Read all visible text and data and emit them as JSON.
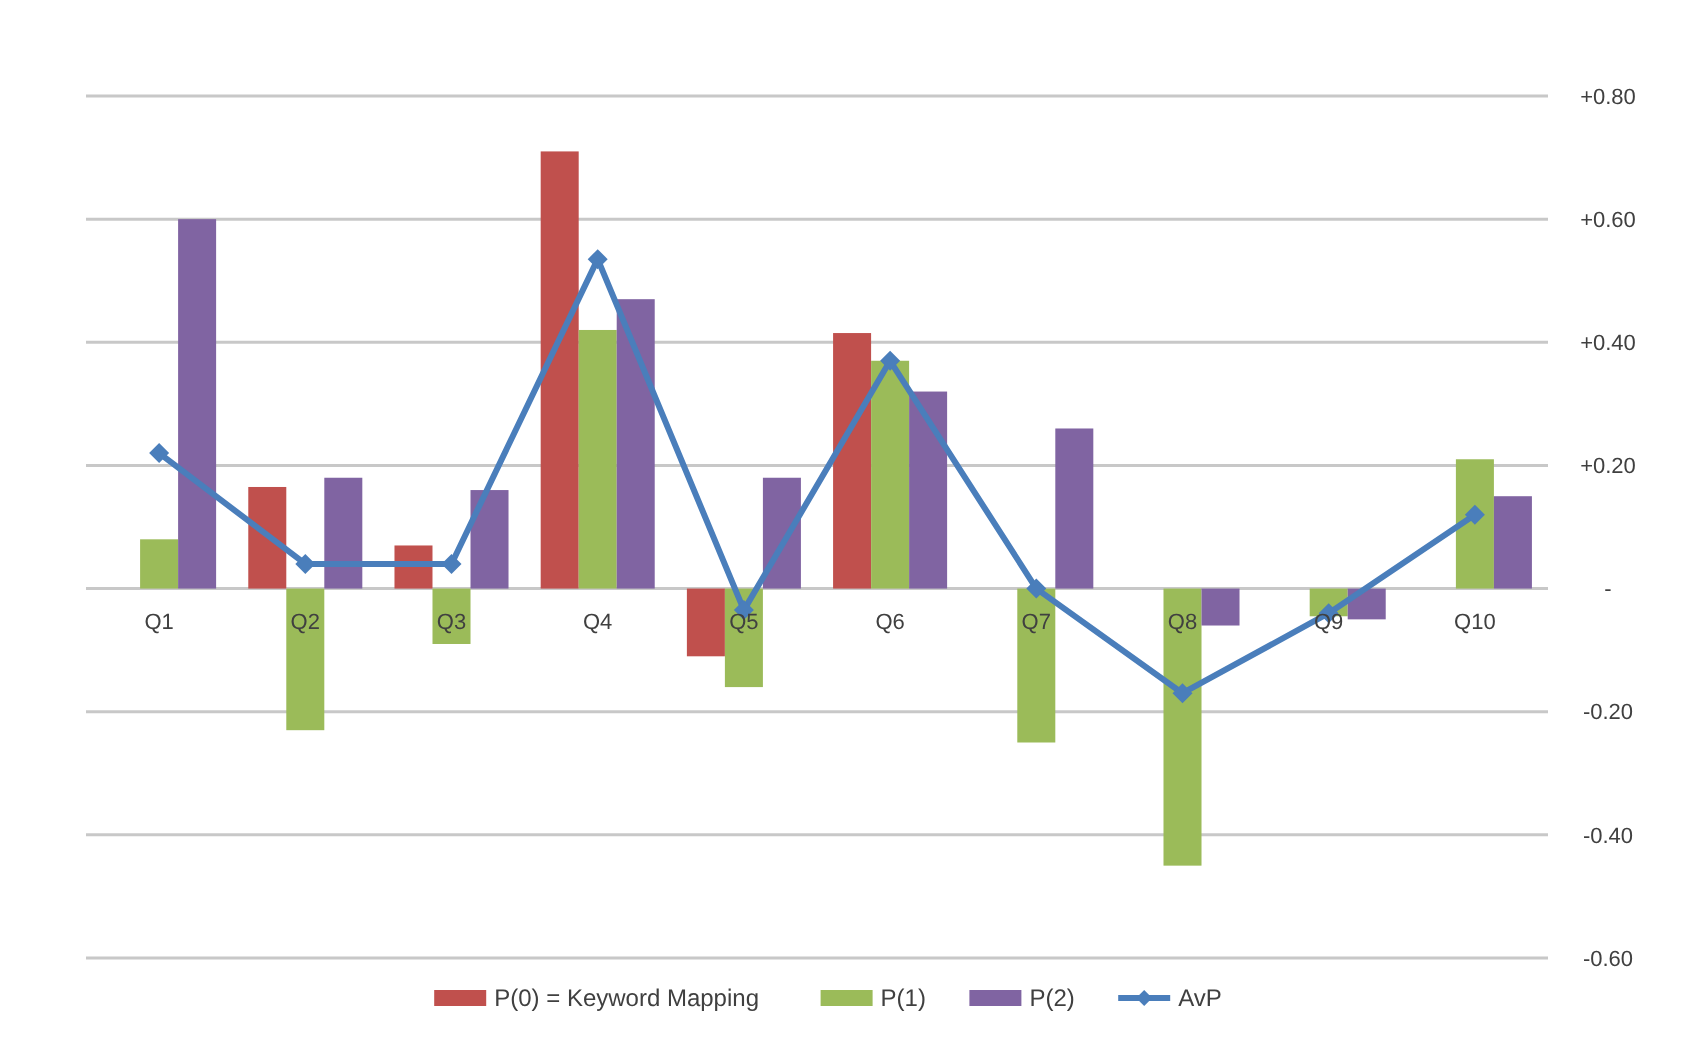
{
  "chart_data": {
    "type": "bar",
    "categories": [
      "Q1",
      "Q2",
      "Q3",
      "Q4",
      "Q5",
      "Q6",
      "Q7",
      "Q8",
      "Q9",
      "Q10"
    ],
    "series": [
      {
        "name": "P(0) = Keyword Mapping",
        "color": "#c0504d",
        "values": [
          0,
          0.165,
          0.07,
          0.71,
          -0.11,
          0.415,
          0,
          0,
          0,
          0
        ]
      },
      {
        "name": "P(1)",
        "color": "#9bbb59",
        "values": [
          0.08,
          -0.23,
          -0.09,
          0.42,
          -0.16,
          0.37,
          -0.25,
          -0.45,
          -0.045,
          0.21
        ]
      },
      {
        "name": "P(2)",
        "color": "#8064a2",
        "values": [
          0.6,
          0.18,
          0.16,
          0.47,
          0.18,
          0.32,
          0.26,
          -0.06,
          -0.05,
          0.15
        ]
      },
      {
        "name": "AvP",
        "type": "line",
        "color": "#4a7ebb",
        "marker": "diamond",
        "values": [
          0.22,
          0.04,
          0.04,
          0.535,
          -0.035,
          0.37,
          0,
          -0.17,
          -0.04,
          0.12
        ]
      }
    ],
    "ylim": [
      -0.6,
      0.8
    ],
    "yticks": [
      {
        "value": -0.6,
        "label": "-0.60"
      },
      {
        "value": -0.4,
        "label": "-0.40"
      },
      {
        "value": -0.2,
        "label": "-0.20"
      },
      {
        "value": 0,
        "label": "-"
      },
      {
        "value": 0.2,
        "label": "+0.20"
      },
      {
        "value": 0.4,
        "label": "+0.40"
      },
      {
        "value": 0.6,
        "label": "+0.60"
      },
      {
        "value": 0.8,
        "label": "+0.80"
      }
    ],
    "grid": "y",
    "legend": "bottom"
  }
}
